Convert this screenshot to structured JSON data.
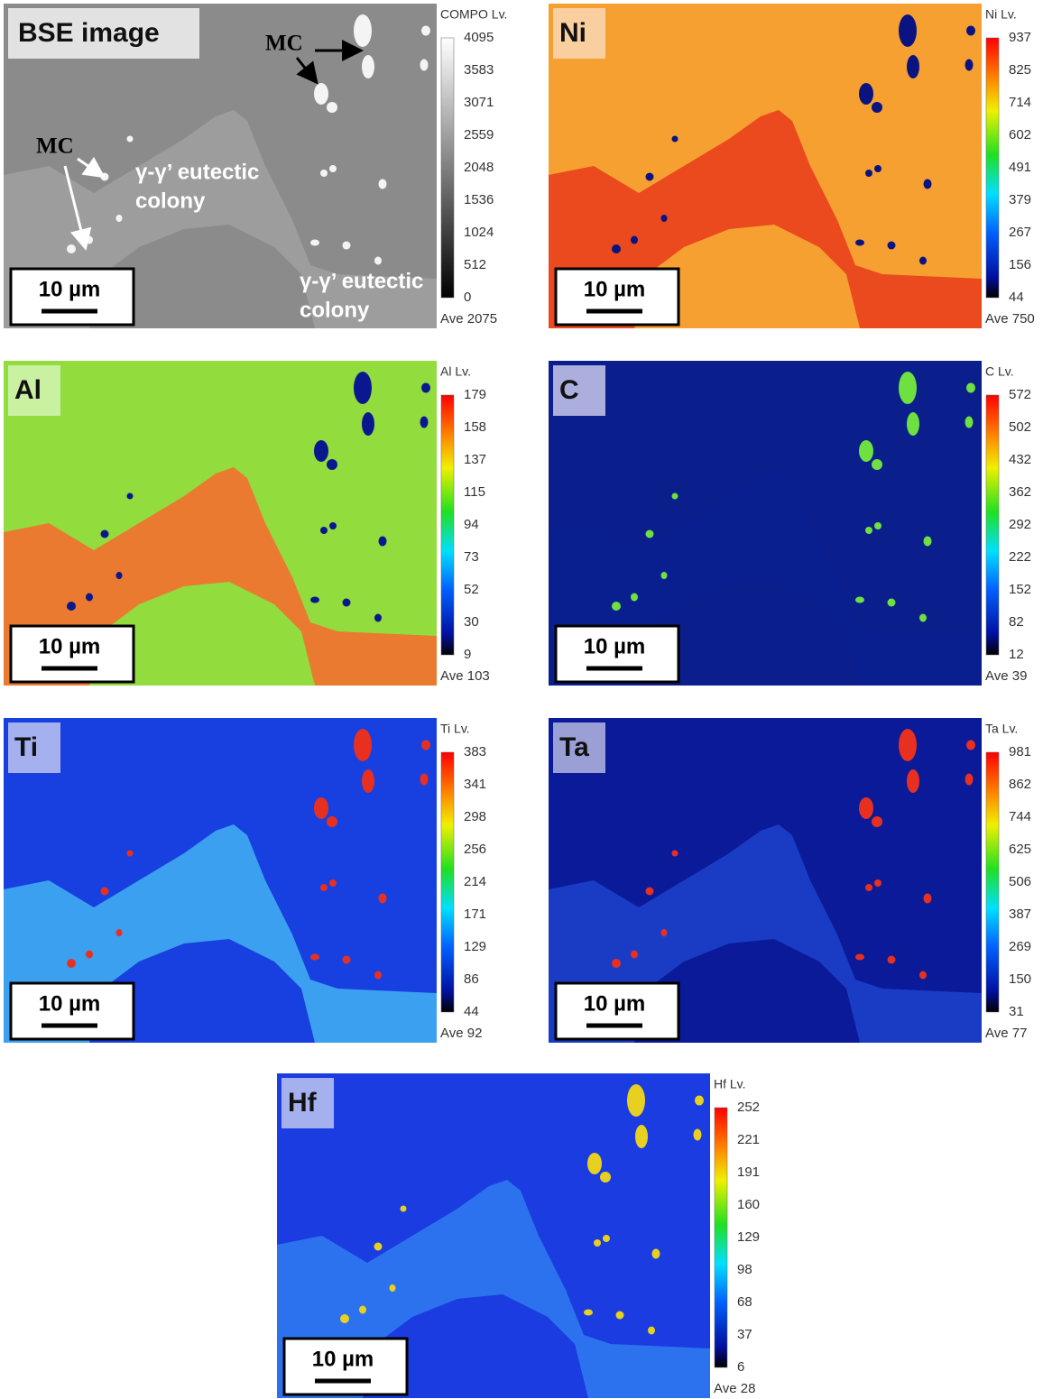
{
  "panels": [
    {
      "label": "BSE image",
      "colorbar": {
        "title": "COMPO  Lv.",
        "ticks": [
          4095,
          3583,
          3071,
          2559,
          2048,
          1536,
          1024,
          512,
          0
        ],
        "average": "Ave 2075"
      },
      "scale_bar": "10 µm"
    },
    {
      "label": "Ni",
      "colorbar": {
        "title": "Ni  Lv.",
        "ticks": [
          937,
          825,
          714,
          602,
          491,
          379,
          267,
          156,
          44
        ],
        "average": "Ave 750"
      },
      "scale_bar": "10 µm"
    },
    {
      "label": "Al",
      "colorbar": {
        "title": "Al  Lv.",
        "ticks": [
          179,
          158,
          137,
          115,
          94,
          73,
          52,
          30,
          9
        ],
        "average": "Ave 103"
      },
      "scale_bar": "10 µm"
    },
    {
      "label": "C",
      "colorbar": {
        "title": "C  Lv.",
        "ticks": [
          572,
          502,
          432,
          362,
          292,
          222,
          152,
          82,
          12
        ],
        "average": "Ave 39"
      },
      "scale_bar": "10 µm"
    },
    {
      "label": "Ti",
      "colorbar": {
        "title": "Ti  Lv.",
        "ticks": [
          383,
          341,
          298,
          256,
          214,
          171,
          129,
          86,
          44
        ],
        "average": "Ave 92"
      },
      "scale_bar": "10 µm"
    },
    {
      "label": "Ta",
      "colorbar": {
        "title": "Ta  Lv.",
        "ticks": [
          981,
          862,
          744,
          625,
          506,
          387,
          269,
          150,
          31
        ],
        "average": "Ave 77"
      },
      "scale_bar": "10 µm"
    },
    {
      "label": "Hf",
      "colorbar": {
        "title": "Hf  Lv.",
        "ticks": [
          252,
          221,
          191,
          160,
          129,
          98,
          68,
          37,
          6
        ],
        "average": "Ave 28"
      },
      "scale_bar": "10 µm"
    }
  ],
  "annotations": [
    {
      "text": "MC"
    },
    {
      "text": "MC"
    },
    {
      "lines": [
        "γ-γ’ eutectic",
        "colony"
      ]
    },
    {
      "lines": [
        "γ-γ’ eutectic",
        "colony"
      ]
    }
  ]
}
